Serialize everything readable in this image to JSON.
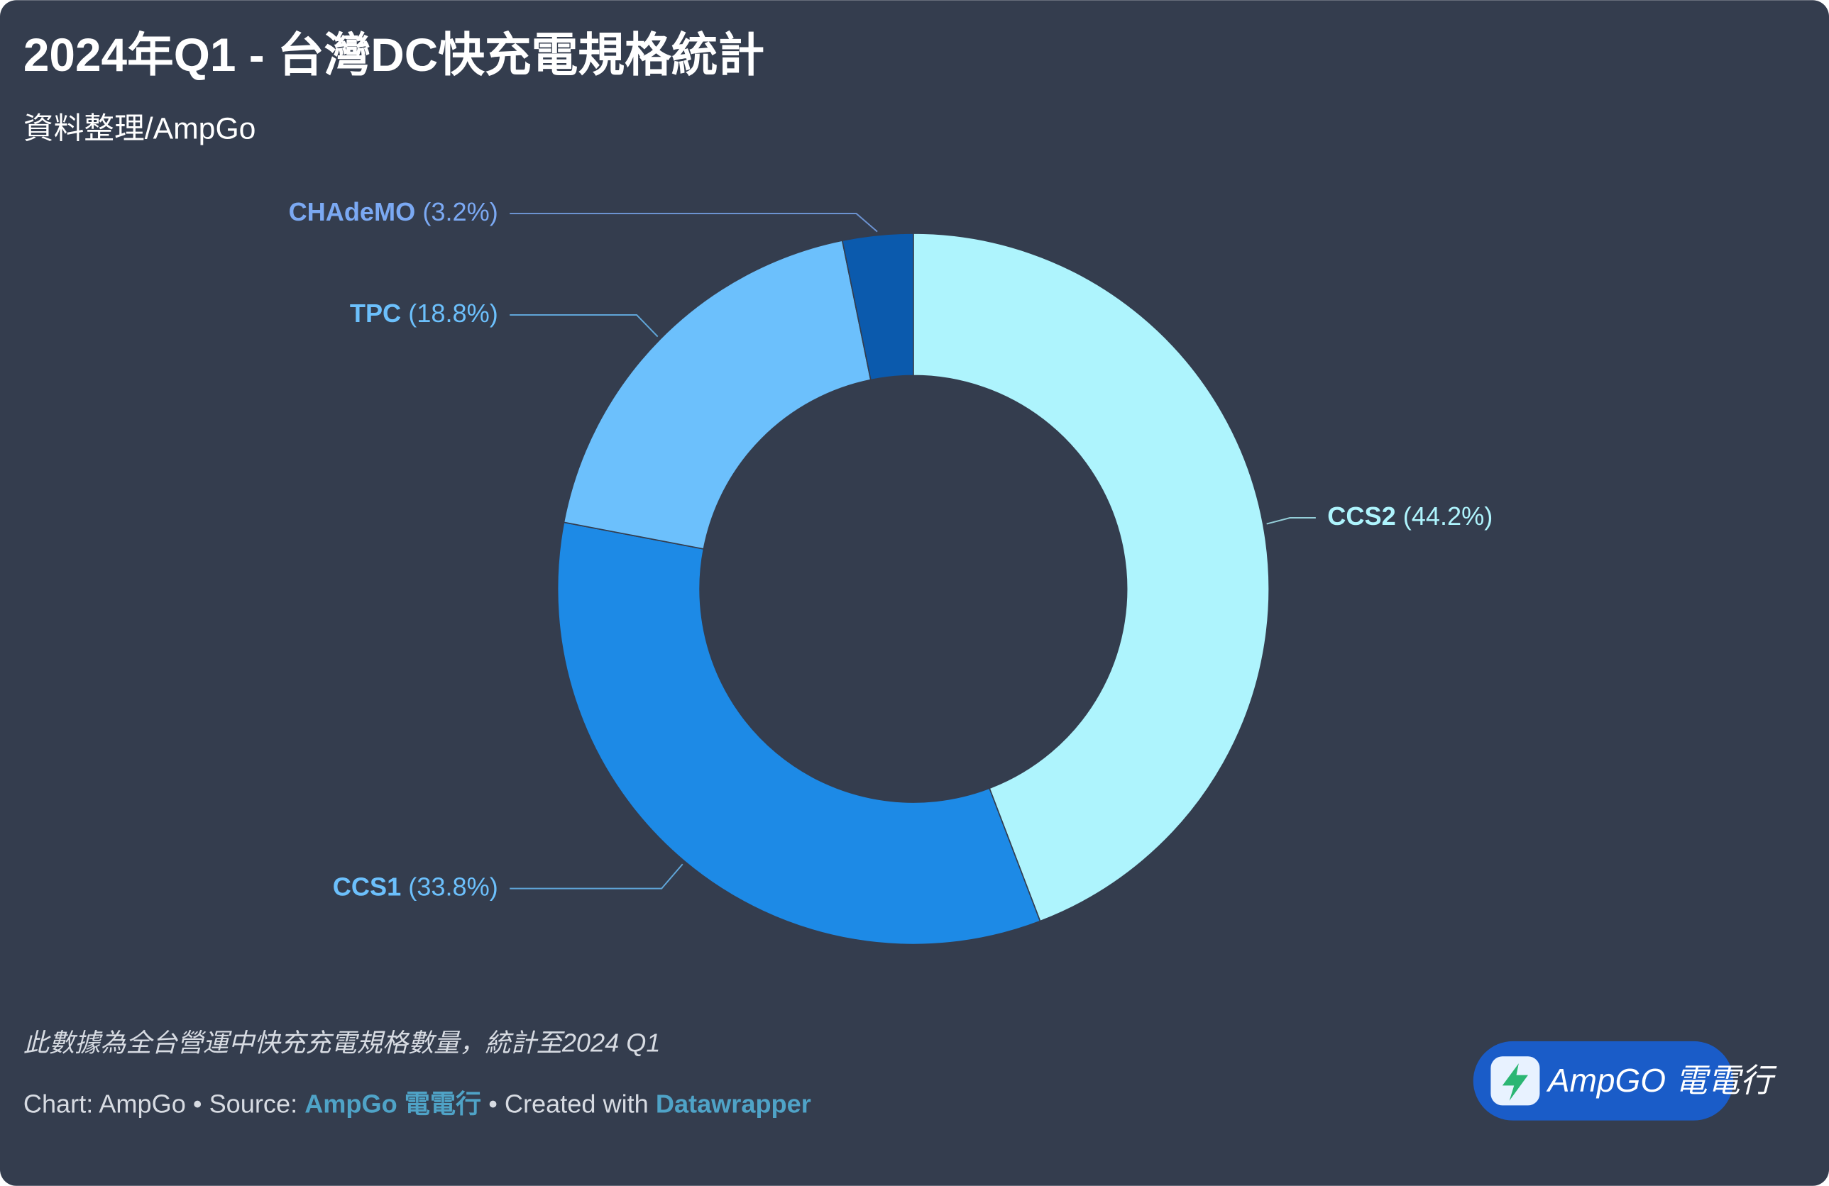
{
  "chart_data": {
    "type": "donut",
    "title": "2024年Q1 - 台灣DC快充電規格統計",
    "subtitle": "資料整理/AmpGo",
    "categories": [
      "CCS2",
      "CCS1",
      "TPC",
      "CHAdeMO"
    ],
    "values": [
      44.2,
      33.8,
      18.8,
      3.2
    ],
    "value_labels": [
      "(44.2%)",
      "(33.8%)",
      "(18.8%)",
      "(3.2%)"
    ],
    "colors": [
      "#aef4fd",
      "#1d8ae6",
      "#6cc0fc",
      "#0b5aad"
    ],
    "label_colors": [
      "#aef4fd",
      "#6cc0fc",
      "#6cc0fc",
      "#7ba9f3"
    ],
    "note": "此數據為全台營運中快充充電規格數量，統計至2024 Q1",
    "footer": {
      "chart_by": "Chart: AmpGo • Source:",
      "source": "AmpGo 電電行",
      "created_label": "• Created with",
      "tool": "Datawrapper"
    },
    "badge": "AmpGO 電電行"
  }
}
